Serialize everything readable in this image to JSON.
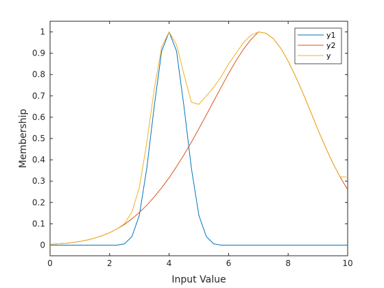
{
  "chart_data": {
    "type": "line",
    "xlabel": "Input Value",
    "ylabel": "Membership",
    "xlim": [
      0,
      10
    ],
    "ylim": [
      -0.05,
      1.05
    ],
    "xticks": [
      0,
      2,
      4,
      6,
      8,
      10
    ],
    "yticks": [
      0,
      0.1,
      0.2,
      0.3,
      0.4,
      0.5,
      0.6,
      0.7,
      0.8,
      0.9,
      1
    ],
    "grid": false,
    "legend_position": "top-right",
    "series": [
      {
        "name": "y1",
        "color": "#0072BD",
        "x": [
          0,
          0.25,
          0.5,
          0.75,
          1,
          1.25,
          1.5,
          1.75,
          2,
          2.25,
          2.5,
          2.75,
          3,
          3.25,
          3.5,
          3.75,
          4,
          4.25,
          4.5,
          4.75,
          5,
          5.25,
          5.5,
          5.75,
          6,
          6.25,
          6.5,
          6.75,
          7,
          7.25,
          7.5,
          7.75,
          8,
          8.25,
          8.5,
          8.75,
          9,
          9.25,
          9.5,
          9.75,
          10
        ],
        "y": [
          0,
          0,
          0,
          0,
          0,
          0,
          0,
          0,
          0,
          0,
          0.006,
          0.04,
          0.14,
          0.36,
          0.65,
          0.91,
          1,
          0.91,
          0.65,
          0.36,
          0.14,
          0.04,
          0.006,
          0,
          0,
          0,
          0,
          0,
          0,
          0,
          0,
          0,
          0,
          0,
          0,
          0,
          0,
          0,
          0,
          0,
          0
        ]
      },
      {
        "name": "y2",
        "color": "#D95319",
        "x": [
          0,
          0.25,
          0.5,
          0.75,
          1,
          1.25,
          1.5,
          1.75,
          2,
          2.25,
          2.5,
          2.75,
          3,
          3.25,
          3.5,
          3.75,
          4,
          4.25,
          4.5,
          4.75,
          5,
          5.25,
          5.5,
          5.75,
          6,
          6.25,
          6.5,
          6.75,
          7,
          7.25,
          7.5,
          7.75,
          8,
          8.25,
          8.5,
          8.75,
          9,
          9.25,
          9.5,
          9.75,
          10
        ],
        "y": [
          0.004,
          0.006,
          0.008,
          0.012,
          0.017,
          0.024,
          0.033,
          0.044,
          0.058,
          0.076,
          0.097,
          0.123,
          0.153,
          0.187,
          0.226,
          0.269,
          0.316,
          0.368,
          0.424,
          0.483,
          0.546,
          0.61,
          0.676,
          0.741,
          0.805,
          0.865,
          0.919,
          0.964,
          1,
          0.994,
          0.969,
          0.924,
          0.863,
          0.791,
          0.712,
          0.628,
          0.542,
          0.461,
          0.385,
          0.319,
          0.26
        ]
      },
      {
        "name": "y",
        "color": "#EDB120",
        "x": [
          0,
          0.25,
          0.5,
          0.75,
          1,
          1.25,
          1.5,
          1.75,
          2,
          2.25,
          2.5,
          2.75,
          3,
          3.25,
          3.5,
          3.75,
          4,
          4.25,
          4.5,
          4.75,
          5,
          5.25,
          5.5,
          5.75,
          6,
          6.25,
          6.5,
          6.75,
          7,
          7.25,
          7.5,
          7.75,
          8,
          8.25,
          8.5,
          8.75,
          9,
          9.25,
          9.5,
          9.75,
          10
        ],
        "y": [
          0.004,
          0.006,
          0.008,
          0.012,
          0.017,
          0.024,
          0.033,
          0.044,
          0.058,
          0.076,
          0.1,
          0.155,
          0.27,
          0.48,
          0.73,
          0.93,
          1,
          0.94,
          0.8,
          0.67,
          0.66,
          0.7,
          0.74,
          0.79,
          0.85,
          0.9,
          0.95,
          0.985,
          1,
          0.994,
          0.969,
          0.924,
          0.863,
          0.791,
          0.712,
          0.628,
          0.542,
          0.461,
          0.385,
          0.32,
          0.32
        ]
      }
    ]
  }
}
